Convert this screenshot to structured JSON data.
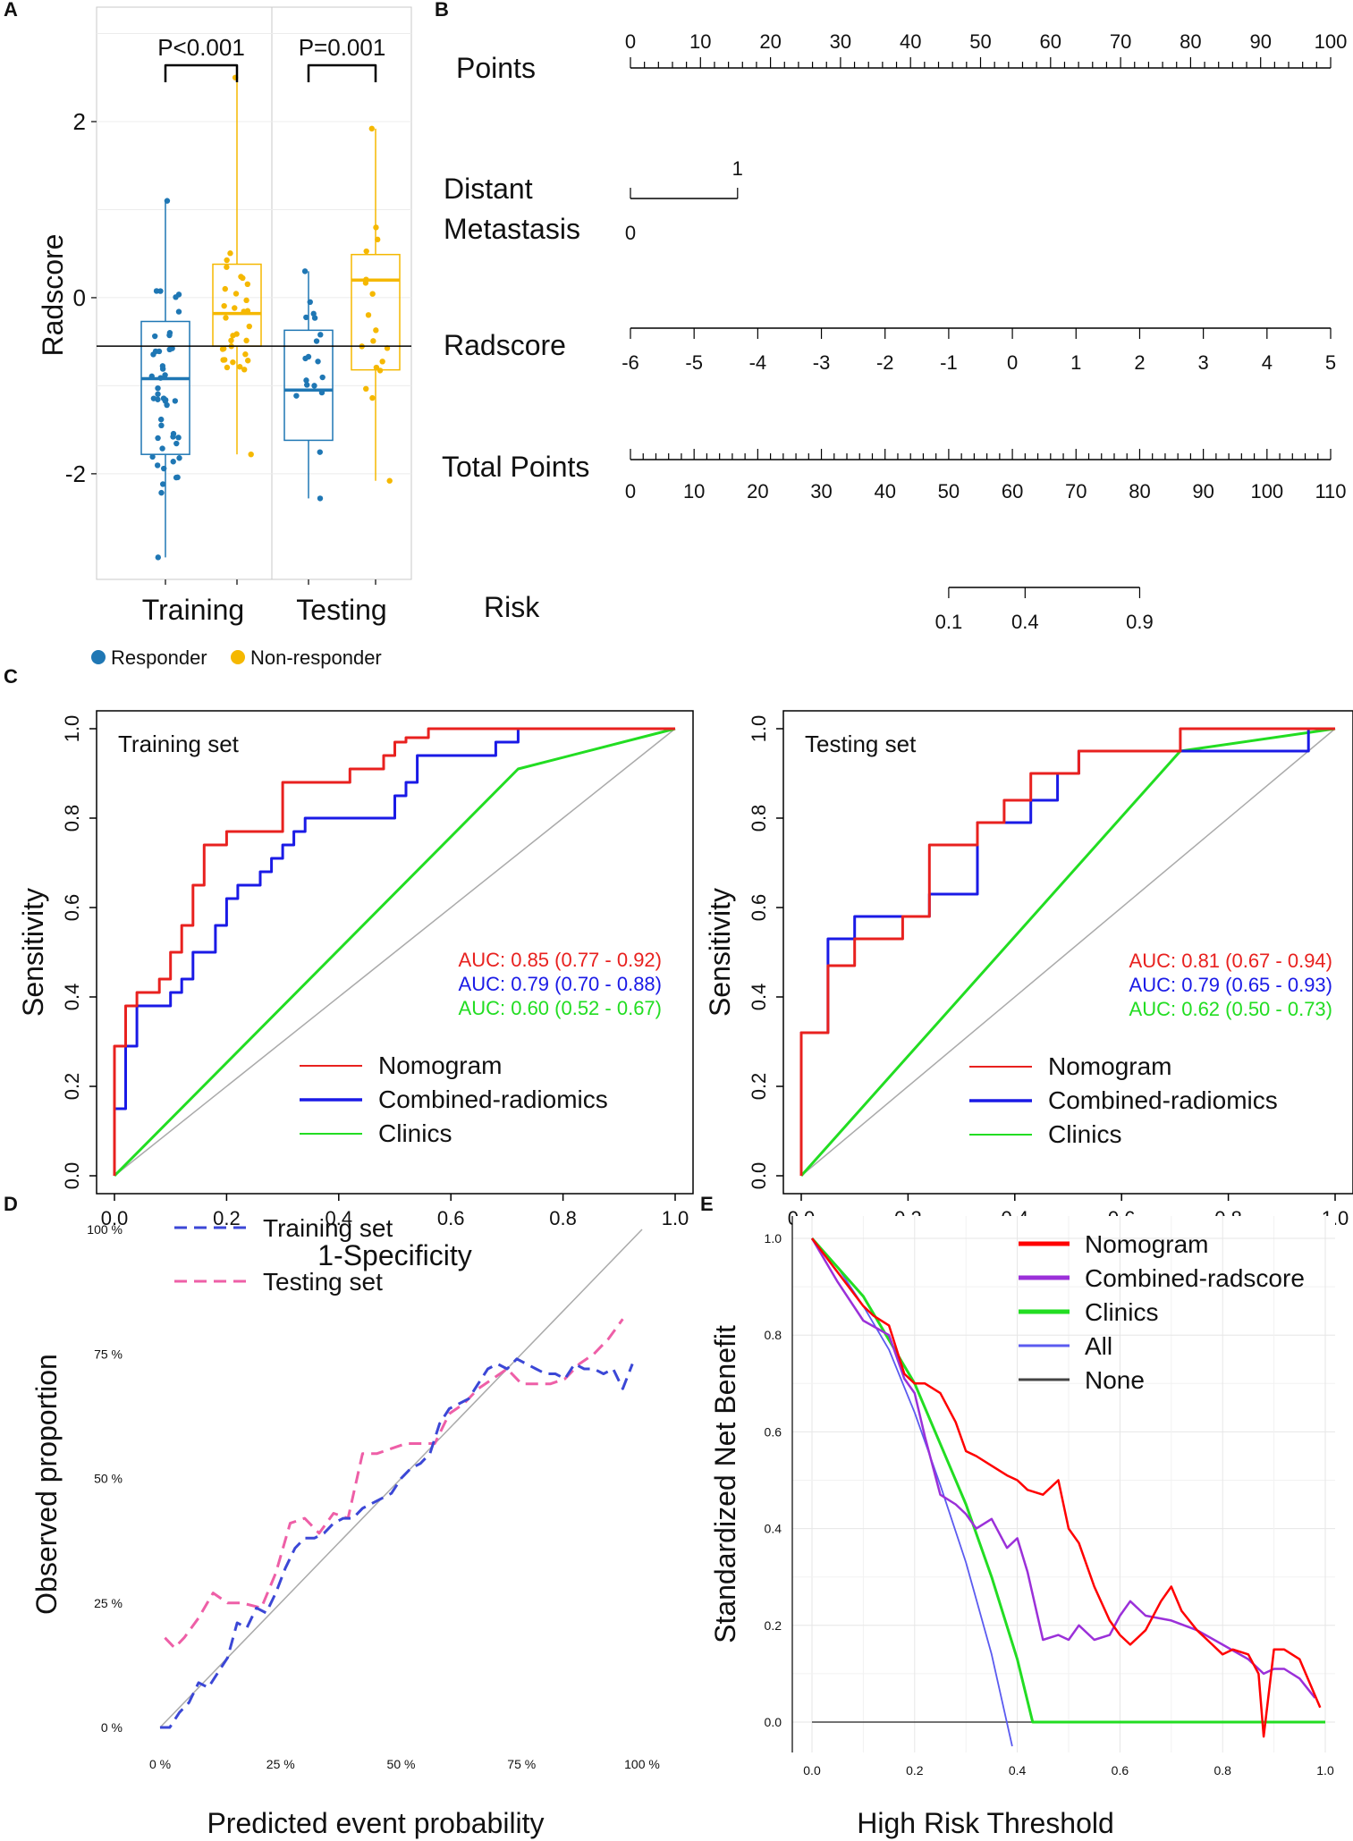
{
  "panel_labels": [
    "A",
    "B",
    "C",
    "D",
    "E"
  ],
  "chart_data": [
    {
      "id": "A",
      "type": "box",
      "ylabel": "Radscore",
      "ylim": [
        -3.2,
        3.3
      ],
      "yticks": [
        -2,
        0,
        2
      ],
      "groups": [
        "Training",
        "Testing"
      ],
      "legend": [
        {
          "name": "Responder",
          "color": "#1f77b4"
        },
        {
          "name": "Non-responder",
          "color": "#f5b800"
        }
      ],
      "pvalues": [
        "P<0.001",
        "P=0.001"
      ],
      "cutoff": -0.55,
      "boxes": [
        {
          "group": "Training",
          "class": "Responder",
          "q1": -1.78,
          "median": -0.92,
          "q3": -0.27,
          "whisker_low": -2.95,
          "whisker_high": 1.1
        },
        {
          "group": "Training",
          "class": "Non-responder",
          "q1": -0.55,
          "median": -0.18,
          "q3": 0.38,
          "whisker_low": -1.78,
          "whisker_high": 2.5
        },
        {
          "group": "Testing",
          "class": "Responder",
          "q1": -1.62,
          "median": -1.05,
          "q3": -0.37,
          "whisker_low": -2.28,
          "whisker_high": 0.3
        },
        {
          "group": "Testing",
          "class": "Non-responder",
          "q1": -0.82,
          "median": 0.2,
          "q3": 0.49,
          "whisker_low": -2.08,
          "whisker_high": 1.92
        }
      ]
    },
    {
      "id": "B",
      "type": "nomogram",
      "rows": [
        {
          "label": "Points",
          "min": 0,
          "max": 100,
          "labels": [
            "0",
            "10",
            "20",
            "30",
            "40",
            "50",
            "60",
            "70",
            "80",
            "90",
            "100"
          ],
          "minor": 50
        },
        {
          "label_lines": [
            "Distant",
            "Metastasis"
          ],
          "levels": [
            "0",
            "1"
          ],
          "points": [
            0,
            15.3
          ]
        },
        {
          "label": "Radscore",
          "labels": [
            "-6",
            "-5",
            "-4",
            "-3",
            "-2",
            "-1",
            "0",
            "1",
            "2",
            "3",
            "4",
            "5"
          ],
          "points_at_min": 0,
          "points_at_max": 100
        },
        {
          "label": "Total Points",
          "min": 0,
          "max": 110,
          "labels": [
            "0",
            "10",
            "20",
            "30",
            "40",
            "50",
            "60",
            "70",
            "80",
            "90",
            "100",
            "110"
          ],
          "minor": 55
        },
        {
          "label": "Risk",
          "labels": [
            "0.1",
            "0.4",
            "0.9"
          ],
          "total_points": [
            50,
            62,
            80
          ]
        }
      ]
    },
    {
      "id": "C1",
      "type": "line",
      "title": "Training set",
      "xlabel": "1-Specificity",
      "ylabel": "Sensitivity",
      "xlim": [
        0,
        1
      ],
      "ylim": [
        0,
        1
      ],
      "ticks": [
        "0.0",
        "0.2",
        "0.4",
        "0.6",
        "0.8",
        "1.0"
      ],
      "auc_labels": [
        "AUC: 0.85 (0.77 - 0.92)",
        "AUC: 0.79 (0.70 - 0.88)",
        "AUC: 0.60 (0.52 - 0.67)"
      ],
      "series": [
        {
          "name": "Nomogram",
          "color": "#e8211f",
          "x": [
            0,
            0,
            0.02,
            0.02,
            0.04,
            0.04,
            0.08,
            0.08,
            0.1,
            0.1,
            0.12,
            0.12,
            0.14,
            0.14,
            0.16,
            0.16,
            0.2,
            0.2,
            0.3,
            0.3,
            0.42,
            0.42,
            0.48,
            0.48,
            0.5,
            0.5,
            0.52,
            0.52,
            0.56,
            0.56,
            0.6,
            0.6,
            1.0
          ],
          "y": [
            0,
            0.29,
            0.29,
            0.38,
            0.38,
            0.41,
            0.41,
            0.44,
            0.44,
            0.5,
            0.5,
            0.56,
            0.56,
            0.65,
            0.65,
            0.74,
            0.74,
            0.77,
            0.77,
            0.88,
            0.88,
            0.91,
            0.91,
            0.94,
            0.94,
            0.97,
            0.97,
            0.98,
            0.98,
            1.0,
            1.0,
            1.0,
            1.0
          ]
        },
        {
          "name": "Combined-radiomics",
          "color": "#1a1ae6",
          "x": [
            0,
            0,
            0.02,
            0.02,
            0.04,
            0.04,
            0.1,
            0.1,
            0.12,
            0.12,
            0.14,
            0.14,
            0.18,
            0.18,
            0.2,
            0.2,
            0.22,
            0.22,
            0.26,
            0.26,
            0.28,
            0.28,
            0.3,
            0.3,
            0.32,
            0.32,
            0.34,
            0.34,
            0.5,
            0.5,
            0.52,
            0.52,
            0.54,
            0.54,
            0.68,
            0.68,
            0.72,
            0.72,
            1.0
          ],
          "y": [
            0,
            0.15,
            0.15,
            0.29,
            0.29,
            0.38,
            0.38,
            0.41,
            0.41,
            0.44,
            0.44,
            0.5,
            0.5,
            0.56,
            0.56,
            0.62,
            0.62,
            0.65,
            0.65,
            0.68,
            0.68,
            0.71,
            0.71,
            0.74,
            0.74,
            0.77,
            0.77,
            0.8,
            0.8,
            0.85,
            0.85,
            0.88,
            0.88,
            0.94,
            0.94,
            0.97,
            0.97,
            1.0,
            1.0
          ]
        },
        {
          "name": "Clinics",
          "color": "#22dd22",
          "x": [
            0,
            0.72,
            1.0
          ],
          "y": [
            0,
            0.91,
            1.0
          ]
        }
      ]
    },
    {
      "id": "C2",
      "type": "line",
      "title": "Testing set",
      "xlabel": "1-Specificity",
      "ylabel": "Sensitivity",
      "xlim": [
        0,
        1
      ],
      "ylim": [
        0,
        1
      ],
      "ticks": [
        "0.0",
        "0.2",
        "0.4",
        "0.6",
        "0.8",
        "1.0"
      ],
      "auc_labels": [
        "AUC: 0.81 (0.67 - 0.94)",
        "AUC: 0.79 (0.65 - 0.93)",
        "AUC: 0.62 (0.50 - 0.73)"
      ],
      "series": [
        {
          "name": "Nomogram",
          "color": "#e8211f",
          "x": [
            0,
            0,
            0.05,
            0.05,
            0.1,
            0.1,
            0.19,
            0.19,
            0.24,
            0.24,
            0.33,
            0.33,
            0.38,
            0.38,
            0.43,
            0.43,
            0.52,
            0.52,
            0.57,
            0.57,
            0.71,
            0.71,
            1.0
          ],
          "y": [
            0,
            0.32,
            0.32,
            0.47,
            0.47,
            0.53,
            0.53,
            0.58,
            0.58,
            0.74,
            0.74,
            0.79,
            0.79,
            0.84,
            0.84,
            0.9,
            0.9,
            0.95,
            0.95,
            0.95,
            0.95,
            1.0,
            1.0
          ]
        },
        {
          "name": "Combined-radiomics",
          "color": "#1a1ae6",
          "x": [
            0,
            0,
            0.05,
            0.05,
            0.1,
            0.1,
            0.24,
            0.24,
            0.33,
            0.33,
            0.43,
            0.43,
            0.48,
            0.48,
            0.52,
            0.52,
            0.95,
            0.95,
            1.0
          ],
          "y": [
            0,
            0.32,
            0.32,
            0.53,
            0.53,
            0.58,
            0.58,
            0.63,
            0.63,
            0.79,
            0.79,
            0.84,
            0.84,
            0.9,
            0.9,
            0.95,
            0.95,
            1.0,
            1.0
          ]
        },
        {
          "name": "Clinics",
          "color": "#22dd22",
          "x": [
            0,
            0.71,
            1.0
          ],
          "y": [
            0,
            0.95,
            1.0
          ]
        }
      ]
    },
    {
      "id": "D",
      "type": "line",
      "xlabel": "Predicted event probability",
      "ylabel": "Observed proportion",
      "xlim": [
        0,
        100
      ],
      "ylim": [
        0,
        100
      ],
      "ticks": [
        "0 %",
        "25 %",
        "50 %",
        "75 %",
        "100 %"
      ],
      "series": [
        {
          "name": "Training set",
          "color": "#3b47d6",
          "x": [
            0,
            2,
            4,
            6,
            8,
            10,
            12,
            14,
            16,
            18,
            20,
            22,
            24,
            26,
            28,
            30,
            32,
            34,
            36,
            38,
            40,
            42,
            44,
            46,
            48,
            50,
            52,
            54,
            56,
            58,
            60,
            62,
            64,
            66,
            68,
            70,
            72,
            74,
            76,
            78,
            80,
            82,
            84,
            86,
            88,
            90,
            92,
            94,
            96,
            98
          ],
          "y": [
            0,
            0,
            3,
            5,
            9,
            8,
            11,
            14,
            21,
            20,
            24,
            23,
            27,
            32,
            36,
            38,
            38,
            39,
            41,
            42,
            42,
            44,
            45,
            46,
            47,
            50,
            52,
            53,
            55,
            61,
            64,
            65,
            66,
            69,
            72,
            73,
            72,
            74,
            73,
            72,
            71,
            71,
            70,
            73,
            72,
            72,
            71,
            72,
            68,
            73
          ]
        },
        {
          "name": "Testing set",
          "color": "#ee5fa7",
          "x": [
            1,
            3,
            5,
            8,
            11,
            14,
            17,
            21,
            24,
            27,
            30,
            33,
            36,
            39,
            42,
            45,
            48,
            51,
            54,
            57,
            60,
            63,
            66,
            69,
            72,
            75,
            78,
            81,
            84,
            87,
            90,
            93,
            96
          ],
          "y": [
            18,
            16,
            18,
            22,
            27,
            25,
            25,
            24,
            31,
            41,
            42,
            39,
            43,
            42,
            55,
            55,
            56,
            57,
            57,
            57,
            63,
            65,
            68,
            70,
            72,
            69,
            69,
            69,
            70,
            73,
            75,
            78,
            82
          ]
        }
      ]
    },
    {
      "id": "E",
      "type": "line",
      "xlabel": "High Risk Threshold",
      "ylabel": "Standardized Net Benefit",
      "xlim": [
        0,
        1
      ],
      "ylim": [
        -0.05,
        1.0
      ],
      "xticks": [
        "0.0",
        "0.2",
        "0.4",
        "0.6",
        "0.8",
        "1.0"
      ],
      "yticks": [
        "0.0",
        "0.2",
        "0.4",
        "0.6",
        "0.8",
        "1.0"
      ],
      "series": [
        {
          "name": "Nomogram",
          "color": "#ff0000",
          "x": [
            0,
            0.05,
            0.1,
            0.12,
            0.15,
            0.18,
            0.2,
            0.22,
            0.25,
            0.28,
            0.3,
            0.32,
            0.35,
            0.38,
            0.4,
            0.42,
            0.45,
            0.48,
            0.5,
            0.52,
            0.55,
            0.58,
            0.6,
            0.62,
            0.65,
            0.68,
            0.7,
            0.72,
            0.75,
            0.78,
            0.8,
            0.82,
            0.85,
            0.87,
            0.88,
            0.9,
            0.92,
            0.95,
            0.97,
            0.99
          ],
          "y": [
            1.0,
            0.93,
            0.86,
            0.84,
            0.82,
            0.72,
            0.7,
            0.7,
            0.68,
            0.62,
            0.56,
            0.55,
            0.53,
            0.51,
            0.5,
            0.48,
            0.47,
            0.5,
            0.4,
            0.37,
            0.28,
            0.21,
            0.18,
            0.16,
            0.19,
            0.25,
            0.28,
            0.23,
            0.19,
            0.16,
            0.14,
            0.15,
            0.14,
            0.1,
            -0.03,
            0.15,
            0.15,
            0.13,
            0.08,
            0.03
          ]
        },
        {
          "name": "Combined-radscore",
          "color": "#9b30d9",
          "x": [
            0,
            0.05,
            0.1,
            0.15,
            0.18,
            0.2,
            0.22,
            0.25,
            0.28,
            0.3,
            0.32,
            0.35,
            0.38,
            0.4,
            0.42,
            0.45,
            0.48,
            0.5,
            0.52,
            0.55,
            0.58,
            0.6,
            0.62,
            0.65,
            0.7,
            0.75,
            0.8,
            0.85,
            0.88,
            0.9,
            0.92,
            0.95,
            0.98
          ],
          "y": [
            1.0,
            0.91,
            0.83,
            0.8,
            0.71,
            0.68,
            0.59,
            0.47,
            0.45,
            0.43,
            0.4,
            0.42,
            0.36,
            0.38,
            0.31,
            0.17,
            0.18,
            0.17,
            0.2,
            0.17,
            0.18,
            0.22,
            0.25,
            0.22,
            0.21,
            0.19,
            0.16,
            0.13,
            0.1,
            0.11,
            0.11,
            0.09,
            0.05
          ]
        },
        {
          "name": "Clinics",
          "color": "#22dd22",
          "x": [
            0,
            0.1,
            0.2,
            0.3,
            0.35,
            0.4,
            0.43,
            1.0
          ],
          "y": [
            1.0,
            0.88,
            0.7,
            0.45,
            0.3,
            0.13,
            0.0,
            0.0
          ]
        },
        {
          "name": "All",
          "color": "#5b5bf0",
          "x": [
            0,
            0.05,
            0.1,
            0.15,
            0.2,
            0.25,
            0.3,
            0.35,
            0.39
          ],
          "y": [
            1.0,
            0.94,
            0.86,
            0.77,
            0.64,
            0.49,
            0.33,
            0.14,
            -0.05
          ]
        },
        {
          "name": "None",
          "color": "#444444",
          "x": [
            0,
            1.0
          ],
          "y": [
            0,
            0
          ]
        }
      ]
    }
  ]
}
